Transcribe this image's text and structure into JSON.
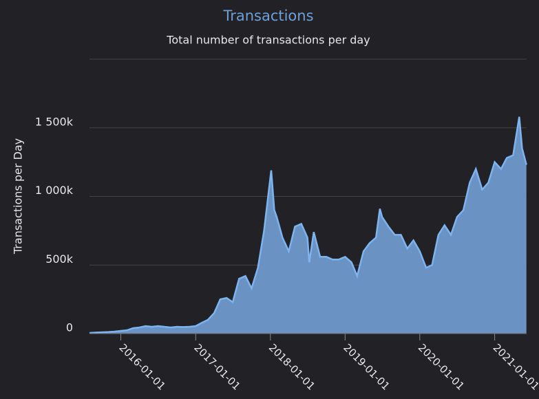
{
  "chart_data": {
    "type": "area",
    "title": "Transactions",
    "subtitle": "Total number of transactions per day",
    "y_label": "Transactions per Day",
    "x": [
      "2015-08-01",
      "2015-09-01",
      "2015-10-01",
      "2015-11-01",
      "2015-12-01",
      "2016-01-01",
      "2016-02-01",
      "2016-03-01",
      "2016-04-01",
      "2016-05-01",
      "2016-06-01",
      "2016-07-01",
      "2016-08-01",
      "2016-09-01",
      "2016-10-01",
      "2016-11-01",
      "2016-12-01",
      "2017-01-01",
      "2017-02-01",
      "2017-03-01",
      "2017-04-01",
      "2017-05-01",
      "2017-06-01",
      "2017-07-01",
      "2017-08-01",
      "2017-09-01",
      "2017-10-01",
      "2017-11-01",
      "2017-12-01",
      "2018-01-05",
      "2018-01-20",
      "2018-02-01",
      "2018-03-01",
      "2018-04-01",
      "2018-05-01",
      "2018-06-01",
      "2018-07-01",
      "2018-07-10",
      "2018-08-01",
      "2018-09-01",
      "2018-10-01",
      "2018-11-01",
      "2018-12-01",
      "2019-01-01",
      "2019-02-01",
      "2019-03-01",
      "2019-04-01",
      "2019-05-01",
      "2019-06-01",
      "2019-06-20",
      "2019-07-01",
      "2019-08-01",
      "2019-09-01",
      "2019-10-01",
      "2019-11-01",
      "2019-12-01",
      "2020-01-01",
      "2020-02-01",
      "2020-03-01",
      "2020-04-01",
      "2020-05-01",
      "2020-06-01",
      "2020-07-01",
      "2020-08-01",
      "2020-09-01",
      "2020-10-01",
      "2020-11-01",
      "2020-12-01",
      "2021-01-01",
      "2021-02-01",
      "2021-03-01",
      "2021-04-01",
      "2021-05-01",
      "2021-05-15",
      "2021-06-05"
    ],
    "values": [
      5000,
      8000,
      10000,
      12000,
      15000,
      20000,
      25000,
      40000,
      45000,
      55000,
      50000,
      55000,
      50000,
      45000,
      50000,
      48000,
      50000,
      55000,
      80000,
      100000,
      150000,
      250000,
      260000,
      230000,
      400000,
      420000,
      330000,
      480000,
      750000,
      1190000,
      900000,
      850000,
      700000,
      600000,
      780000,
      800000,
      700000,
      520000,
      740000,
      560000,
      560000,
      540000,
      540000,
      560000,
      520000,
      420000,
      600000,
      660000,
      700000,
      910000,
      850000,
      780000,
      720000,
      720000,
      620000,
      680000,
      600000,
      480000,
      500000,
      720000,
      790000,
      720000,
      850000,
      900000,
      1100000,
      1200000,
      1050000,
      1100000,
      1250000,
      1200000,
      1280000,
      1300000,
      1580000,
      1350000,
      1230000
    ],
    "line_color": "#7db4f0",
    "fill_color": "#6a93c4",
    "xlim": [
      "2015-08-01",
      "2021-06-06"
    ],
    "xticks": [
      "2016-01-01",
      "2017-01-01",
      "2018-01-01",
      "2019-01-01",
      "2020-01-01",
      "2021-01-01"
    ],
    "ylim": [
      0,
      2000000
    ],
    "yticks": [
      {
        "value": 0,
        "label": "0"
      },
      {
        "value": 500000,
        "label": "500k"
      },
      {
        "value": 1000000,
        "label": "1 000k"
      },
      {
        "value": 1500000,
        "label": "1 500k"
      }
    ],
    "grid": true
  }
}
